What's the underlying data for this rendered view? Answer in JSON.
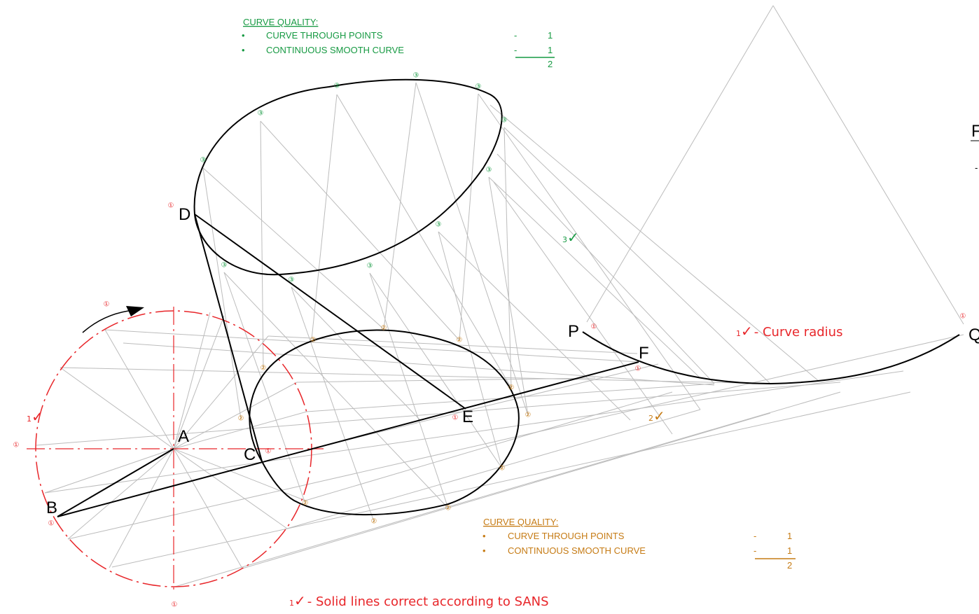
{
  "colors": {
    "red": "#e8262a",
    "green": "#179a43",
    "orange": "#c67b14",
    "construction": "#bcbcbc",
    "line": "#000000"
  },
  "points": {
    "A": "A",
    "B": "B",
    "C": "C",
    "D": "D",
    "E": "E",
    "F": "F",
    "P": "P",
    "Q": "Q"
  },
  "marks": {
    "one": "①",
    "two": "②",
    "three": "③"
  },
  "ticks": {
    "tick_glyph": "✓",
    "one": "1",
    "two": "2",
    "three": "3",
    "curve_radius_text": "- Curve radius",
    "solid_lines_text": "- Solid lines correct according to SANS"
  },
  "quality_green": {
    "heading": "CURVE QUALITY:",
    "bullet": "•",
    "item1": "CURVE THROUGH POINTS",
    "item2": "CONTINUOUS SMOOTH CURVE",
    "dash": "-",
    "score1": "1",
    "score2": "1",
    "total": "2"
  },
  "quality_orange": {
    "heading": "CURVE QUALITY:",
    "bullet": "•",
    "item1": "CURVE THROUGH POINTS",
    "item2": "CONTINUOUS SMOOTH CURVE",
    "dash": "-",
    "score1": "1",
    "score2": "1",
    "total": "2"
  },
  "edge_fragment": {
    "letter": "F",
    "dash": "-"
  }
}
